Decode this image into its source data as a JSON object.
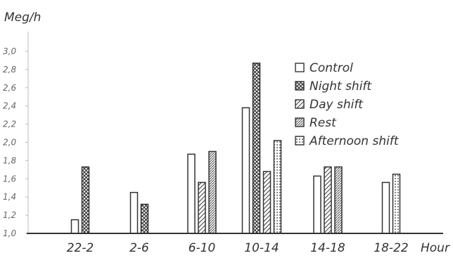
{
  "chart_data": {
    "type": "bar",
    "ylabel": "Meg/h",
    "xlabel": "Hour",
    "ylim": [
      1.0,
      3.0
    ],
    "yticks": [
      "1,0",
      "1,2",
      "1,4",
      "1,6",
      "1,8",
      "2,0",
      "2,2",
      "2,4",
      "2,6",
      "2,8",
      "3,0"
    ],
    "categories": [
      "22-2",
      "2-6",
      "6-10",
      "10-14",
      "14-18",
      "18-22"
    ],
    "series": [
      {
        "name": "Control",
        "pattern": "empty",
        "values": [
          1.15,
          1.45,
          1.87,
          2.38,
          1.63,
          1.56
        ]
      },
      {
        "name": "Night shift",
        "pattern": "crosshatch",
        "values": [
          1.73,
          1.32,
          null,
          2.87,
          null,
          null
        ]
      },
      {
        "name": "Day shift",
        "pattern": "diagonal",
        "values": [
          null,
          null,
          1.56,
          1.68,
          1.73,
          null
        ]
      },
      {
        "name": "Rest",
        "pattern": "dense-diagonal",
        "values": [
          null,
          null,
          1.9,
          null,
          1.73,
          null
        ]
      },
      {
        "name": "Afternoon shift",
        "pattern": "dotted",
        "values": [
          null,
          null,
          null,
          2.02,
          null,
          1.65
        ]
      }
    ],
    "legend_position": "top-right",
    "grid": false
  }
}
